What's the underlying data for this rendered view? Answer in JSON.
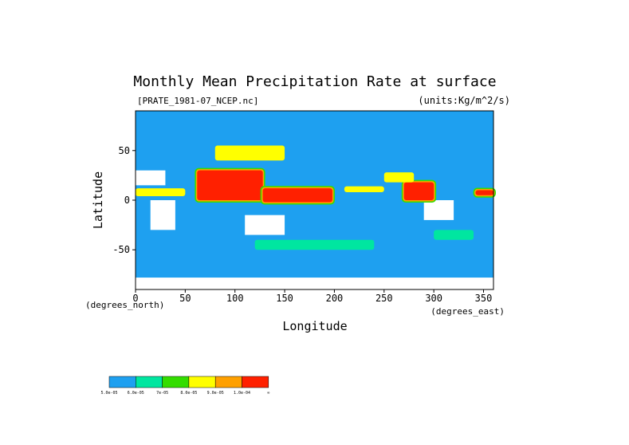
{
  "chart_data": {
    "type": "heatmap",
    "title": "Monthly Mean Precipitation Rate at surface",
    "subtitle_left": "[PRATE_1981-07_NCEP.nc]",
    "subtitle_right": "(units:Kg/m^2/s)",
    "xlabel": "Longitude",
    "ylabel": "Latitude",
    "x_unit_label": "(degrees_east)",
    "y_unit_label": "(degrees_north)",
    "xlim": [
      0,
      360
    ],
    "ylim": [
      -90,
      90
    ],
    "x_ticks": [
      "0",
      "50",
      "100",
      "150",
      "200",
      "250",
      "300",
      "350"
    ],
    "y_ticks": [
      "50",
      "0",
      "-50"
    ],
    "x_tick_values": [
      0,
      50,
      100,
      150,
      200,
      250,
      300,
      350
    ],
    "y_tick_values": [
      50,
      0,
      -50
    ],
    "background_color": "#1ea0f0",
    "legend": {
      "placement": "bottom-left",
      "colors": [
        "#1ea0f0",
        "#00e6a0",
        "#33dd00",
        "#ffff00",
        "#ffa000",
        "#ff2000"
      ],
      "labels": [
        "5.0e-05",
        "6.0e-05",
        "7e-05",
        "8.0e-05",
        "9.0e-05",
        "1.0e-04",
        "∞"
      ]
    },
    "regions": [
      {
        "level": "high",
        "lon": [
          62,
          128
        ],
        "lat": [
          0,
          30
        ]
      },
      {
        "level": "high",
        "lon": [
          128,
          198
        ],
        "lat": [
          -2,
          12
        ]
      },
      {
        "level": "high",
        "lon": [
          270,
          300
        ],
        "lat": [
          0,
          18
        ]
      },
      {
        "level": "high",
        "lon": [
          342,
          360
        ],
        "lat": [
          5,
          10
        ]
      },
      {
        "level": "mid",
        "lon": [
          0,
          50
        ],
        "lat": [
          4,
          12
        ]
      },
      {
        "level": "mid",
        "lon": [
          80,
          150
        ],
        "lat": [
          40,
          55
        ]
      },
      {
        "level": "mid",
        "lon": [
          210,
          250
        ],
        "lat": [
          8,
          14
        ]
      },
      {
        "level": "mid",
        "lon": [
          250,
          280
        ],
        "lat": [
          18,
          28
        ]
      },
      {
        "level": "low",
        "lon": [
          120,
          240
        ],
        "lat": [
          -50,
          -40
        ]
      },
      {
        "level": "low",
        "lon": [
          300,
          340
        ],
        "lat": [
          -40,
          -30
        ]
      }
    ],
    "no_data_regions": [
      {
        "lon": [
          0,
          360
        ],
        "lat": [
          -90,
          -78
        ]
      },
      {
        "lon": [
          15,
          40
        ],
        "lat": [
          -30,
          0
        ]
      },
      {
        "lon": [
          0,
          30
        ],
        "lat": [
          15,
          30
        ]
      },
      {
        "lon": [
          110,
          150
        ],
        "lat": [
          -35,
          -15
        ]
      },
      {
        "lon": [
          290,
          320
        ],
        "lat": [
          -20,
          0
        ]
      }
    ]
  }
}
